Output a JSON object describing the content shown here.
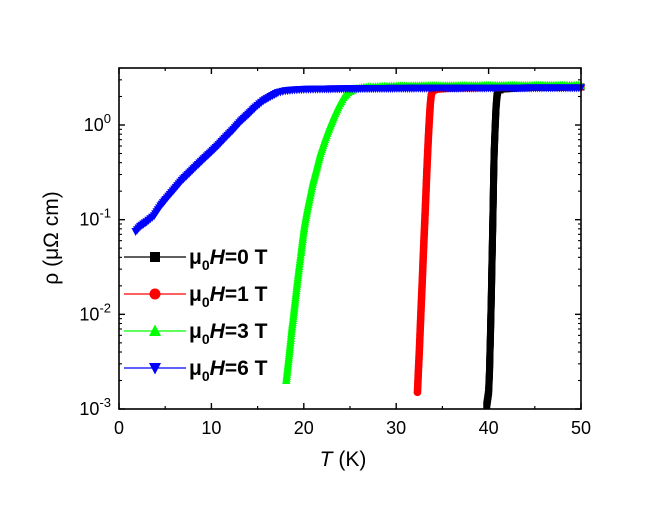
{
  "chart_data": {
    "type": "scatter",
    "title": "",
    "xlabel_main": "T",
    "xlabel_unit": " (K)",
    "ylabel": "ρ (μΩ cm)",
    "xlim": [
      0,
      50
    ],
    "ylim": [
      0.001,
      4
    ],
    "yscale": "log",
    "xticks": [
      0,
      10,
      20,
      30,
      40,
      50
    ],
    "xtick_labels": [
      "0",
      "10",
      "20",
      "30",
      "40",
      "50"
    ],
    "ytick_labels": [
      {
        "base": "10",
        "exp": "-3",
        "value": 0.001
      },
      {
        "base": "10",
        "exp": "-2",
        "value": 0.01
      },
      {
        "base": "10",
        "exp": "-1",
        "value": 0.1
      },
      {
        "base": "10",
        "exp": "0",
        "value": 1
      }
    ],
    "grid": false,
    "legend_position": "left",
    "series": [
      {
        "name": "μ0H=0 T",
        "legend_prefix": "μ",
        "legend_sub": "0",
        "legend_italic": "H",
        "legend_suffix": "=0 T",
        "color": "#000000",
        "marker": "square",
        "points": [
          [
            39.8,
            0.0011
          ],
          [
            40.0,
            0.0015
          ],
          [
            40.1,
            0.0025
          ],
          [
            40.15,
            0.004
          ],
          [
            40.2,
            0.006
          ],
          [
            40.25,
            0.01
          ],
          [
            40.3,
            0.016
          ],
          [
            40.35,
            0.03
          ],
          [
            40.4,
            0.05
          ],
          [
            40.45,
            0.09
          ],
          [
            40.5,
            0.16
          ],
          [
            40.55,
            0.3
          ],
          [
            40.6,
            0.5
          ],
          [
            40.7,
            0.9
          ],
          [
            40.8,
            1.5
          ],
          [
            40.9,
            2.0
          ],
          [
            41.0,
            2.3
          ],
          [
            41.5,
            2.4
          ],
          [
            43,
            2.45
          ],
          [
            45,
            2.5
          ],
          [
            47,
            2.5
          ],
          [
            49,
            2.52
          ],
          [
            50,
            2.52
          ]
        ]
      },
      {
        "name": "μ0H=1 T",
        "legend_prefix": "μ",
        "legend_sub": "0",
        "legend_italic": "H",
        "legend_suffix": "=1 T",
        "color": "#ff0000",
        "marker": "circle",
        "points": [
          [
            32.3,
            0.0015
          ],
          [
            32.4,
            0.0025
          ],
          [
            32.5,
            0.004
          ],
          [
            32.6,
            0.007
          ],
          [
            32.7,
            0.012
          ],
          [
            32.8,
            0.02
          ],
          [
            32.9,
            0.035
          ],
          [
            33.0,
            0.06
          ],
          [
            33.1,
            0.1
          ],
          [
            33.2,
            0.17
          ],
          [
            33.3,
            0.3
          ],
          [
            33.4,
            0.5
          ],
          [
            33.5,
            0.8
          ],
          [
            33.6,
            1.2
          ],
          [
            33.7,
            1.7
          ],
          [
            33.8,
            2.1
          ],
          [
            34.0,
            2.3
          ],
          [
            34.5,
            2.4
          ],
          [
            36,
            2.45
          ],
          [
            38,
            2.48
          ],
          [
            40,
            2.5
          ],
          [
            42,
            2.52
          ],
          [
            44,
            2.52
          ],
          [
            46,
            2.53
          ],
          [
            48,
            2.53
          ],
          [
            50,
            2.53
          ]
        ]
      },
      {
        "name": "μ0H=3 T",
        "legend_prefix": "μ",
        "legend_sub": "0",
        "legend_italic": "H",
        "legend_suffix": "=3 T",
        "color": "#00ff00",
        "marker": "triangle-up",
        "points": [
          [
            18.1,
            0.002
          ],
          [
            18.3,
            0.003
          ],
          [
            18.5,
            0.0045
          ],
          [
            18.7,
            0.007
          ],
          [
            18.9,
            0.01
          ],
          [
            19.1,
            0.015
          ],
          [
            19.3,
            0.022
          ],
          [
            19.5,
            0.032
          ],
          [
            19.7,
            0.045
          ],
          [
            19.9,
            0.065
          ],
          [
            20.1,
            0.09
          ],
          [
            20.4,
            0.13
          ],
          [
            20.7,
            0.18
          ],
          [
            21.0,
            0.25
          ],
          [
            21.4,
            0.35
          ],
          [
            21.8,
            0.5
          ],
          [
            22.3,
            0.7
          ],
          [
            22.8,
            0.95
          ],
          [
            23.3,
            1.25
          ],
          [
            23.8,
            1.6
          ],
          [
            24.3,
            1.95
          ],
          [
            24.8,
            2.2
          ],
          [
            25.5,
            2.4
          ],
          [
            26.5,
            2.5
          ],
          [
            28,
            2.55
          ],
          [
            30,
            2.58
          ],
          [
            33,
            2.6
          ],
          [
            36,
            2.6
          ],
          [
            40,
            2.62
          ],
          [
            44,
            2.62
          ],
          [
            48,
            2.63
          ],
          [
            50,
            2.63
          ]
        ]
      },
      {
        "name": "μ0H=6 T",
        "legend_prefix": "μ",
        "legend_sub": "0",
        "legend_italic": "H",
        "legend_suffix": "=6 T",
        "color": "#0000ff",
        "marker": "triangle-down",
        "points": [
          [
            1.8,
            0.075
          ],
          [
            2.3,
            0.085
          ],
          [
            3,
            0.095
          ],
          [
            3.8,
            0.11
          ],
          [
            4.5,
            0.14
          ],
          [
            5.2,
            0.17
          ],
          [
            6,
            0.21
          ],
          [
            6.8,
            0.26
          ],
          [
            7.6,
            0.31
          ],
          [
            8.4,
            0.37
          ],
          [
            9.2,
            0.44
          ],
          [
            10,
            0.52
          ],
          [
            10.8,
            0.62
          ],
          [
            11.6,
            0.75
          ],
          [
            12.4,
            0.9
          ],
          [
            13.2,
            1.1
          ],
          [
            14,
            1.3
          ],
          [
            14.8,
            1.55
          ],
          [
            15.6,
            1.8
          ],
          [
            16.4,
            2.0
          ],
          [
            17.2,
            2.2
          ],
          [
            18,
            2.3
          ],
          [
            19,
            2.35
          ],
          [
            20,
            2.38
          ],
          [
            22,
            2.4
          ],
          [
            25,
            2.42
          ],
          [
            28,
            2.43
          ],
          [
            31,
            2.44
          ],
          [
            34,
            2.45
          ],
          [
            37,
            2.45
          ],
          [
            40,
            2.46
          ],
          [
            43,
            2.46
          ],
          [
            46,
            2.47
          ],
          [
            50,
            2.47
          ]
        ]
      }
    ]
  }
}
